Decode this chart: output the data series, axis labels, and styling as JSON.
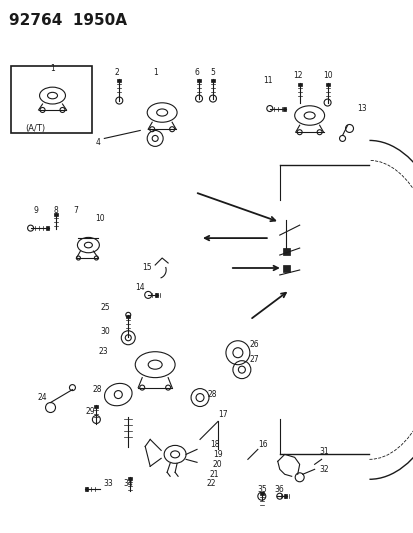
{
  "title": "92764  1950A",
  "title_fontsize": 11,
  "title_fontweight": "bold",
  "bg_color": "#ffffff",
  "line_color": "#1a1a1a",
  "fig_width": 4.14,
  "fig_height": 5.33,
  "dpi": 100
}
